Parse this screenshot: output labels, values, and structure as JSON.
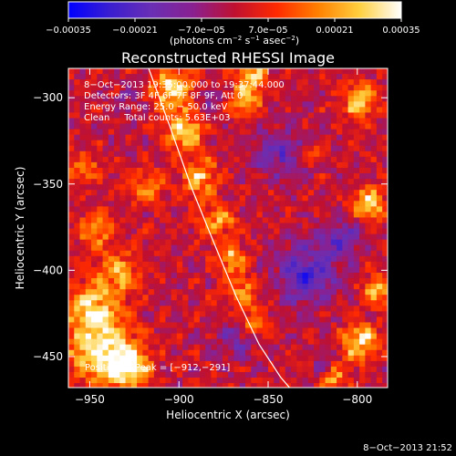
{
  "chart_data": {
    "type": "heatmap",
    "title": "Reconstructed RHESSI Image",
    "xlabel": "Heliocentric X (arcsec)",
    "ylabel": "Heliocentric Y (arcsec)",
    "xlim": [
      -962,
      -783
    ],
    "ylim": [
      -468,
      -283
    ],
    "x_ticks": [
      -950,
      -900,
      -850,
      -800
    ],
    "x_tick_labels": [
      "−950",
      "−900",
      "−850",
      "−800"
    ],
    "y_ticks": [
      -300,
      -350,
      -400,
      -450
    ],
    "y_tick_labels": [
      "−300",
      "−350",
      "−400",
      "−450"
    ],
    "colorbar": {
      "range": [
        -0.00035,
        0.00035
      ],
      "tick_values": [
        -0.00035,
        -0.00021,
        -7e-05,
        7e-05,
        0.00021,
        0.00035
      ],
      "tick_labels": [
        "−0.00035",
        "−0.00021",
        "−7.0e−05",
        "7.0e−05",
        "0.00021",
        "0.00035"
      ],
      "unit_parts": [
        "(photons cm",
        "−2",
        " s",
        "−1",
        " asec",
        "−2",
        ")"
      ],
      "colors": [
        "#0000ff",
        "#3a1ed0",
        "#6a2fb4",
        "#8a2090",
        "#c01030",
        "#ff2a00",
        "#ff8000",
        "#ffd040",
        "#ffffff"
      ]
    },
    "annotations": [
      "8−Oct−2013 19:35:00.000 to 19:37:44.000",
      "Detectors: 3F 4F 6F 7F 8F 9F, Att 0",
      "Energy Range: 25.0 − 50.0 keV",
      "Clean     Total counts: 5.63E+03"
    ],
    "peak_label": "Position of Peak = [−912,−291]",
    "limb_curve": {
      "x": [
        -917,
        -905,
        -893,
        -880,
        -868,
        -855,
        -843,
        -838
      ],
      "y": [
        -283,
        -317,
        -352,
        -385,
        -415,
        -443,
        -462,
        -468
      ]
    },
    "hot_regions": [
      {
        "x": -945,
        "y": -445,
        "r": 18,
        "v": 0.00034
      },
      {
        "x": -950,
        "y": -420,
        "r": 14,
        "v": 0.00028
      },
      {
        "x": -930,
        "y": -455,
        "r": 12,
        "v": 0.0003
      },
      {
        "x": -935,
        "y": -400,
        "r": 12,
        "v": 0.00022
      },
      {
        "x": -948,
        "y": -375,
        "r": 10,
        "v": 0.0002
      },
      {
        "x": -955,
        "y": -340,
        "r": 9,
        "v": 0.00018
      },
      {
        "x": -920,
        "y": -350,
        "r": 10,
        "v": 0.0002
      },
      {
        "x": -905,
        "y": -295,
        "r": 12,
        "v": 0.00032
      },
      {
        "x": -898,
        "y": -318,
        "r": 10,
        "v": 0.0003
      },
      {
        "x": -890,
        "y": -345,
        "r": 10,
        "v": 0.00027
      },
      {
        "x": -880,
        "y": -370,
        "r": 10,
        "v": 0.00025
      },
      {
        "x": -872,
        "y": -392,
        "r": 9,
        "v": 0.00023
      },
      {
        "x": -865,
        "y": -412,
        "r": 9,
        "v": 0.00021
      },
      {
        "x": -858,
        "y": -430,
        "r": 8,
        "v": 0.00019
      },
      {
        "x": -865,
        "y": -300,
        "r": 9,
        "v": 0.00026
      },
      {
        "x": -860,
        "y": -285,
        "r": 8,
        "v": 0.00028
      },
      {
        "x": -800,
        "y": -300,
        "r": 10,
        "v": 0.00028
      },
      {
        "x": -795,
        "y": -360,
        "r": 9,
        "v": 0.0003
      },
      {
        "x": -790,
        "y": -410,
        "r": 9,
        "v": 0.00026
      },
      {
        "x": -800,
        "y": -440,
        "r": 10,
        "v": 0.00032
      },
      {
        "x": -815,
        "y": -460,
        "r": 8,
        "v": 0.00024
      },
      {
        "x": -825,
        "y": -330,
        "r": 6,
        "v": 0.00012
      }
    ],
    "cold_regions": [
      {
        "x": -830,
        "y": -400,
        "r": 18,
        "v": -0.00022
      },
      {
        "x": -845,
        "y": -330,
        "r": 14,
        "v": -0.00016
      },
      {
        "x": -870,
        "y": -440,
        "r": 10,
        "v": -0.00014
      },
      {
        "x": -810,
        "y": -380,
        "r": 10,
        "v": -0.00018
      },
      {
        "x": -885,
        "y": -300,
        "r": 8,
        "v": -0.00012
      },
      {
        "x": -930,
        "y": -300,
        "r": 8,
        "v": -0.0001
      },
      {
        "x": -820,
        "y": -455,
        "r": 8,
        "v": -0.00012
      }
    ]
  },
  "footer": {
    "timestamp": "8−Oct−2013 21:52"
  }
}
